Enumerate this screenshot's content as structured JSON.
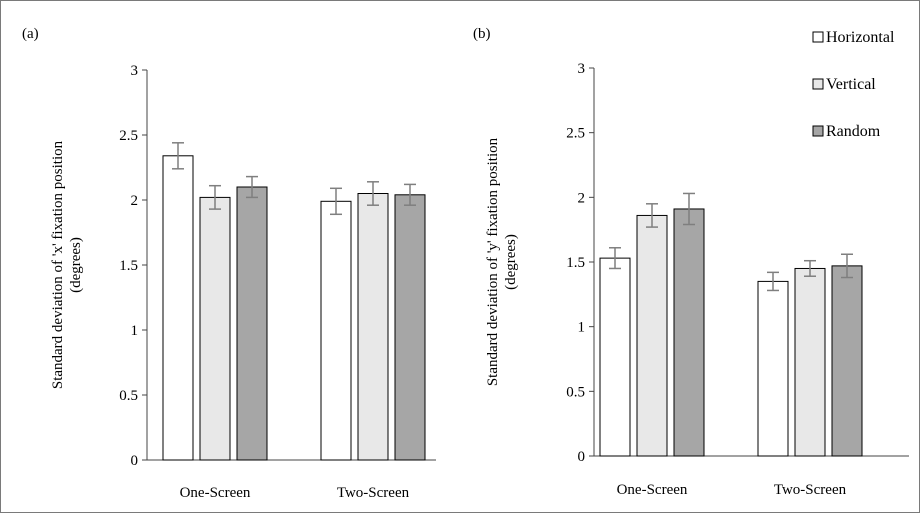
{
  "chart_data": [
    {
      "panel_label": "(a)",
      "type": "bar",
      "categories": [
        "One-Screen",
        "Two-Screen"
      ],
      "series": [
        {
          "name": "Horizontal",
          "values": [
            2.34,
            1.99
          ],
          "errors": [
            0.1,
            0.1
          ]
        },
        {
          "name": "Vertical",
          "values": [
            2.02,
            2.05
          ],
          "errors": [
            0.09,
            0.09
          ]
        },
        {
          "name": "Random",
          "values": [
            2.1,
            2.04
          ],
          "errors": [
            0.08,
            0.08
          ]
        }
      ],
      "ylabel_line1": "Standard deviation of 'x' fixation position",
      "ylabel_line2": "(degrees)",
      "ylim": [
        0,
        3
      ],
      "yticks": [
        "0",
        "0.5",
        "1",
        "1.5",
        "2",
        "2.5",
        "3"
      ],
      "grid": false
    },
    {
      "panel_label": "(b)",
      "type": "bar",
      "categories": [
        "One-Screen",
        "Two-Screen"
      ],
      "series": [
        {
          "name": "Horizontal",
          "values": [
            1.53,
            1.35
          ],
          "errors": [
            0.08,
            0.07
          ]
        },
        {
          "name": "Vertical",
          "values": [
            1.86,
            1.45
          ],
          "errors": [
            0.09,
            0.06
          ]
        },
        {
          "name": "Random",
          "values": [
            1.91,
            1.47
          ],
          "errors": [
            0.12,
            0.09
          ]
        }
      ],
      "ylabel_line1": "Standard deviation of 'y' fixation position",
      "ylabel_line2": "(degrees)",
      "ylim": [
        0,
        3
      ],
      "yticks": [
        "0",
        "0.5",
        "1",
        "1.5",
        "2",
        "2.5",
        "3"
      ],
      "grid": false,
      "legend_position": "top-right"
    }
  ],
  "legend": [
    {
      "name": "Horizontal",
      "color": "#ffffff"
    },
    {
      "name": "Vertical",
      "color": "#e8e8e8"
    },
    {
      "name": "Random",
      "color": "#a6a6a6"
    }
  ],
  "series_colors": [
    "#ffffff",
    "#e8e8e8",
    "#a6a6a6"
  ]
}
